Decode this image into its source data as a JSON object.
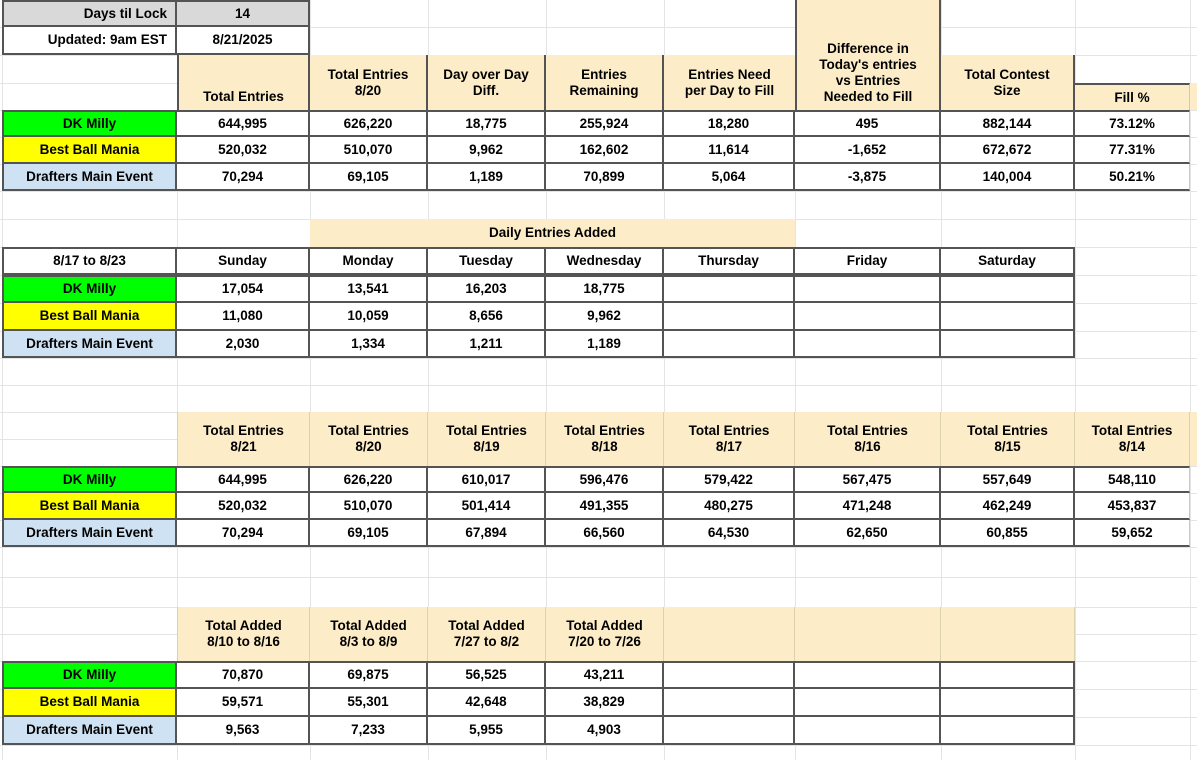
{
  "meta": {
    "days_til_lock_label": "Days til Lock",
    "days_til_lock_value": "14",
    "updated_label": "Updated: 9am EST",
    "updated_value": "8/21/2025"
  },
  "colors": {
    "header_fill": "#fcecc7",
    "meta_fill": "#d9d9d9",
    "dk_milly": "#00ff00",
    "best_ball_mania": "#ffff00",
    "drafters_main_event": "#cfe2f3",
    "table_border": "#545454",
    "gridline": "#e4e4e4"
  },
  "contests": [
    "DK Milly",
    "Best Ball Mania",
    "Drafters Main Event"
  ],
  "table1": {
    "headers": [
      "Total Entries",
      "Total Entries\n8/20",
      "Day over Day\nDiff.",
      "Entries\nRemaining",
      "Entries Need\nper Day to Fill",
      "Difference in\nToday's entries\nvs Entries\nNeeded to Fill",
      "Total Contest\nSize",
      "Fill %"
    ],
    "rows": [
      {
        "label": "DK Milly",
        "values": [
          "644,995",
          "626,220",
          "18,775",
          "255,924",
          "18,280",
          "495",
          "882,144",
          "73.12%"
        ]
      },
      {
        "label": "Best Ball Mania",
        "values": [
          "520,032",
          "510,070",
          "9,962",
          "162,602",
          "11,614",
          "-1,652",
          "672,672",
          "77.31%"
        ]
      },
      {
        "label": "Drafters Main Event",
        "values": [
          "70,294",
          "69,105",
          "1,189",
          "70,899",
          "5,064",
          "-3,875",
          "140,004",
          "50.21%"
        ]
      }
    ]
  },
  "table2": {
    "title": "Daily Entries Added",
    "week_label": "8/17 to 8/23",
    "day_headers": [
      "Sunday",
      "Monday",
      "Tuesday",
      "Wednesday",
      "Thursday",
      "Friday",
      "Saturday"
    ],
    "rows": [
      {
        "label": "DK Milly",
        "values": [
          "17,054",
          "13,541",
          "16,203",
          "18,775",
          "",
          "",
          ""
        ]
      },
      {
        "label": "Best Ball Mania",
        "values": [
          "11,080",
          "10,059",
          "8,656",
          "9,962",
          "",
          "",
          ""
        ]
      },
      {
        "label": "Drafters Main Event",
        "values": [
          "2,030",
          "1,334",
          "1,211",
          "1,189",
          "",
          "",
          ""
        ]
      }
    ]
  },
  "table3": {
    "headers": [
      "Total Entries\n8/21",
      "Total Entries\n8/20",
      "Total Entries\n8/19",
      "Total Entries\n8/18",
      "Total Entries\n8/17",
      "Total Entries\n8/16",
      "Total Entries\n8/15",
      "Total Entries\n8/14"
    ],
    "rows": [
      {
        "label": "DK Milly",
        "values": [
          "644,995",
          "626,220",
          "610,017",
          "596,476",
          "579,422",
          "567,475",
          "557,649",
          "548,110"
        ]
      },
      {
        "label": "Best Ball Mania",
        "values": [
          "520,032",
          "510,070",
          "501,414",
          "491,355",
          "480,275",
          "471,248",
          "462,249",
          "453,837"
        ]
      },
      {
        "label": "Drafters Main Event",
        "values": [
          "70,294",
          "69,105",
          "67,894",
          "66,560",
          "64,530",
          "62,650",
          "60,855",
          "59,652"
        ]
      }
    ]
  },
  "table4": {
    "headers": [
      "Total Added\n8/10 to 8/16",
      "Total Added\n8/3 to 8/9",
      "Total Added\n7/27 to 8/2",
      "Total Added\n7/20 to 7/26",
      "",
      "",
      ""
    ],
    "rows": [
      {
        "label": "DK Milly",
        "values": [
          "70,870",
          "69,875",
          "56,525",
          "43,211",
          "",
          "",
          ""
        ]
      },
      {
        "label": "Best Ball Mania",
        "values": [
          "59,571",
          "55,301",
          "42,648",
          "38,829",
          "",
          "",
          ""
        ]
      },
      {
        "label": "Drafters Main Event",
        "values": [
          "9,563",
          "7,233",
          "5,955",
          "4,903",
          "",
          "",
          ""
        ]
      }
    ]
  }
}
